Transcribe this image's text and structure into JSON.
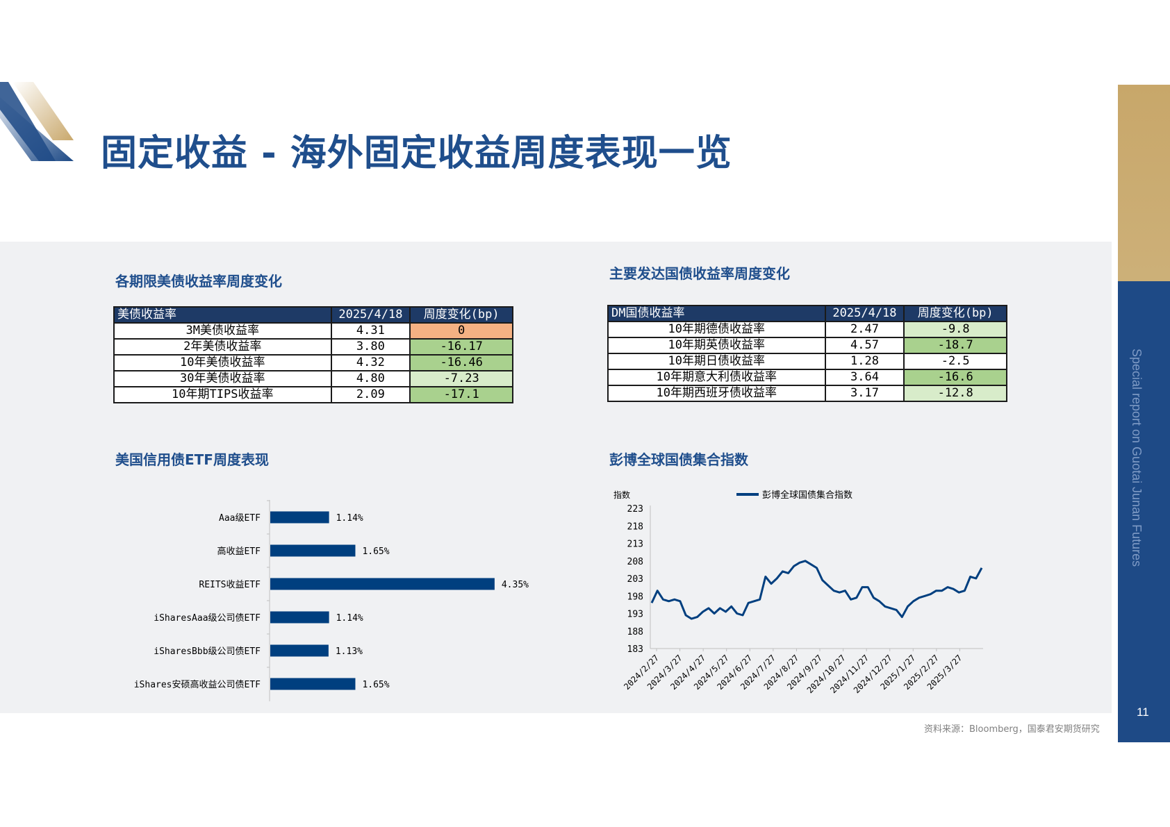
{
  "header": {
    "title": "固定收益 - 海外固定收益周度表现一览",
    "side_text": "Special report on Guotai Junan Futures",
    "page_number": "11"
  },
  "colors": {
    "brand_blue": "#1f4e8c",
    "header_navy": "#1e3a66",
    "gold": "#c8a76a",
    "cell_orange": "#f4b183",
    "cell_green": "#a9d18e",
    "cell_light_green": "#d8ecca",
    "bar_blue": "#003f7f"
  },
  "us_treasury": {
    "title": "各期限美债收益率周度变化",
    "headers": [
      "美债收益率",
      "2025/4/18",
      "周度变化(bp)"
    ],
    "rows": [
      {
        "name": "3M美债收益率",
        "value": "4.31",
        "change": "0",
        "color": "orange"
      },
      {
        "name": "2年美债收益率",
        "value": "3.80",
        "change": "-16.17",
        "color": "green"
      },
      {
        "name": "10年美债收益率",
        "value": "4.32",
        "change": "-16.46",
        "color": "green"
      },
      {
        "name": "30年美债收益率",
        "value": "4.80",
        "change": "-7.23",
        "color": "lightgreen"
      },
      {
        "name": "10年期TIPS收益率",
        "value": "2.09",
        "change": "-17.1",
        "color": "green"
      }
    ]
  },
  "dm_bonds": {
    "title": "主要发达国债收益率周度变化",
    "headers": [
      "DM国债收益率",
      "2025/4/18",
      "周度变化(bp)"
    ],
    "rows": [
      {
        "name": "10年期德债收益率",
        "value": "2.47",
        "change": "-9.8",
        "color": "lightgreen"
      },
      {
        "name": "10年期英债收益率",
        "value": "4.57",
        "change": "-18.7",
        "color": "green"
      },
      {
        "name": "10年期日债收益率",
        "value": "1.28",
        "change": "-2.5",
        "color": "white"
      },
      {
        "name": "10年期意大利债收益率",
        "value": "3.64",
        "change": "-16.6",
        "color": "green"
      },
      {
        "name": "10年期西班牙债收益率",
        "value": "3.17",
        "change": "-12.8",
        "color": "lightgreen"
      }
    ]
  },
  "etf_section": {
    "title": "美国信用债ETF周度表现"
  },
  "bloomberg_section": {
    "title": "彭博全球国债集合指数"
  },
  "source_note": "资料来源：Bloomberg，国泰君安期货研究",
  "chart_data": [
    {
      "type": "bar",
      "orientation": "horizontal",
      "categories": [
        "Aaa级ETF",
        "高收益ETF",
        "REITS收益ETF",
        "iSharesAaa级公司债ETF",
        "iSharesBbb级公司债ETF",
        "iShares安硕高收益公司债ETF"
      ],
      "values": [
        1.14,
        1.65,
        4.35,
        1.14,
        1.13,
        1.65
      ],
      "data_labels": [
        "1.14%",
        "1.65%",
        "4.35%",
        "1.14%",
        "1.13%",
        "1.65%"
      ],
      "xlim": [
        0,
        4.5
      ]
    },
    {
      "type": "line",
      "ylabel": "指数",
      "legend": "top-center",
      "series": [
        {
          "name": "彭博全球国债集合指数",
          "x": [
            "2024/2/20",
            "2024/2/27",
            "2024/3/5",
            "2024/3/12",
            "2024/3/19",
            "2024/3/27",
            "2024/4/3",
            "2024/4/10",
            "2024/4/17",
            "2024/4/24",
            "2024/5/1",
            "2024/5/8",
            "2024/5/15",
            "2024/5/22",
            "2024/5/29",
            "2024/6/5",
            "2024/6/12",
            "2024/6/19",
            "2024/6/27",
            "2024/7/3",
            "2024/7/10",
            "2024/7/17",
            "2024/7/24",
            "2024/7/31",
            "2024/8/7",
            "2024/8/14",
            "2024/8/21",
            "2024/8/27",
            "2024/9/4",
            "2024/9/11",
            "2024/9/18",
            "2024/9/27",
            "2024/10/4",
            "2024/10/11",
            "2024/10/18",
            "2024/10/27",
            "2024/11/4",
            "2024/11/11",
            "2024/11/18",
            "2024/11/27",
            "2024/12/4",
            "2024/12/11",
            "2024/12/18",
            "2024/12/27",
            "2025/1/3",
            "2025/1/10",
            "2025/1/17",
            "2025/1/27",
            "2025/2/3",
            "2025/2/10",
            "2025/2/17",
            "2025/2/27",
            "2025/3/5",
            "2025/3/12",
            "2025/3/19",
            "2025/3/27",
            "2025/4/3",
            "2025/4/10",
            "2025/4/18"
          ],
          "values": [
            196,
            199.5,
            197,
            196.5,
            197,
            196.5,
            192.5,
            191.5,
            192,
            193.5,
            194.5,
            193,
            194.5,
            193.5,
            195,
            193,
            192.5,
            196,
            196.5,
            197,
            203.5,
            201.5,
            203,
            205,
            204.5,
            206.5,
            207.5,
            208,
            207,
            206,
            202.5,
            201,
            199.5,
            199,
            199.5,
            197,
            197.5,
            200.5,
            200.5,
            197.5,
            196.5,
            195,
            194.5,
            194,
            192,
            195,
            196.5,
            197.5,
            198,
            198.5,
            199.5,
            199.5,
            200.5,
            200,
            199,
            199.5,
            203.5,
            203,
            206
          ]
        }
      ],
      "x_tick_labels": [
        "2024/2/27",
        "2024/3/27",
        "2024/4/27",
        "2024/5/27",
        "2024/6/27",
        "2024/7/27",
        "2024/8/27",
        "2024/9/27",
        "2024/10/27",
        "2024/11/27",
        "2024/12/27",
        "2025/1/27",
        "2025/2/27",
        "2025/3/27"
      ],
      "y_ticks": [
        "183",
        "188",
        "193",
        "198",
        "203",
        "208",
        "213",
        "218",
        "223"
      ],
      "ylim": [
        183,
        223
      ],
      "grid": false
    }
  ]
}
